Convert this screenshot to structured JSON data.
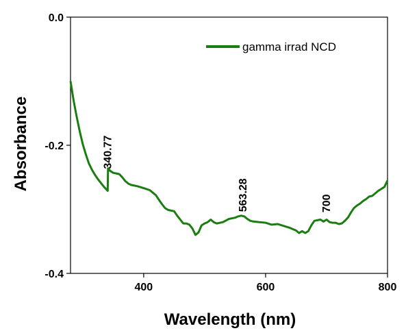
{
  "chart_data": {
    "type": "line",
    "xlabel": "Wavelength (nm)",
    "ylabel": "Absorbance",
    "xlim": [
      280,
      800
    ],
    "ylim": [
      -0.4,
      0.0
    ],
    "xticks": [
      400,
      600,
      800
    ],
    "xtick_labels": [
      "400",
      "600",
      "800"
    ],
    "yticks": [
      0.0,
      -0.2,
      -0.4
    ],
    "ytick_labels": [
      "0.0",
      "-0.2",
      "-0.4"
    ],
    "grid": false,
    "legend": "top-right",
    "series_color": "#1a7d10",
    "series": [
      {
        "name": "gamma irrad NCD",
        "x": [
          280,
          285,
          290,
          295,
          300,
          305,
          310,
          315,
          320,
          325,
          330,
          335,
          340,
          341,
          341.5,
          345,
          350,
          355,
          360,
          365,
          370,
          375,
          380,
          390,
          400,
          410,
          415,
          420,
          425,
          430,
          435,
          440,
          445,
          450,
          455,
          460,
          465,
          470,
          475,
          480,
          485,
          490,
          495,
          500,
          505,
          510,
          515,
          520,
          530,
          540,
          550,
          555,
          560,
          565,
          570,
          575,
          580,
          590,
          600,
          610,
          620,
          630,
          640,
          650,
          655,
          660,
          665,
          670,
          675,
          680,
          685,
          690,
          695,
          700,
          705,
          710,
          715,
          720,
          725,
          730,
          735,
          740,
          745,
          750,
          755,
          760,
          765,
          770,
          775,
          780,
          785,
          790,
          795,
          800
        ],
        "y": [
          -0.1,
          -0.13,
          -0.155,
          -0.178,
          -0.198,
          -0.214,
          -0.228,
          -0.238,
          -0.246,
          -0.253,
          -0.259,
          -0.265,
          -0.27,
          -0.271,
          -0.236,
          -0.24,
          -0.243,
          -0.244,
          -0.245,
          -0.25,
          -0.256,
          -0.26,
          -0.262,
          -0.264,
          -0.267,
          -0.27,
          -0.274,
          -0.278,
          -0.285,
          -0.292,
          -0.298,
          -0.301,
          -0.302,
          -0.303,
          -0.31,
          -0.316,
          -0.322,
          -0.322,
          -0.324,
          -0.33,
          -0.34,
          -0.336,
          -0.325,
          -0.322,
          -0.32,
          -0.316,
          -0.32,
          -0.322,
          -0.32,
          -0.315,
          -0.313,
          -0.311,
          -0.31,
          -0.311,
          -0.315,
          -0.318,
          -0.319,
          -0.32,
          -0.321,
          -0.324,
          -0.323,
          -0.326,
          -0.329,
          -0.333,
          -0.337,
          -0.334,
          -0.337,
          -0.334,
          -0.325,
          -0.318,
          -0.317,
          -0.316,
          -0.319,
          -0.316,
          -0.32,
          -0.321,
          -0.321,
          -0.323,
          -0.322,
          -0.318,
          -0.313,
          -0.305,
          -0.298,
          -0.294,
          -0.291,
          -0.287,
          -0.284,
          -0.28,
          -0.279,
          -0.275,
          -0.271,
          -0.268,
          -0.265,
          -0.255
        ]
      }
    ],
    "annotations": [
      {
        "text": "340.77",
        "x": 341,
        "y": -0.237
      },
      {
        "text": "563.28",
        "x": 563,
        "y": -0.304
      },
      {
        "text": "700",
        "x": 700,
        "y": -0.305
      }
    ]
  }
}
